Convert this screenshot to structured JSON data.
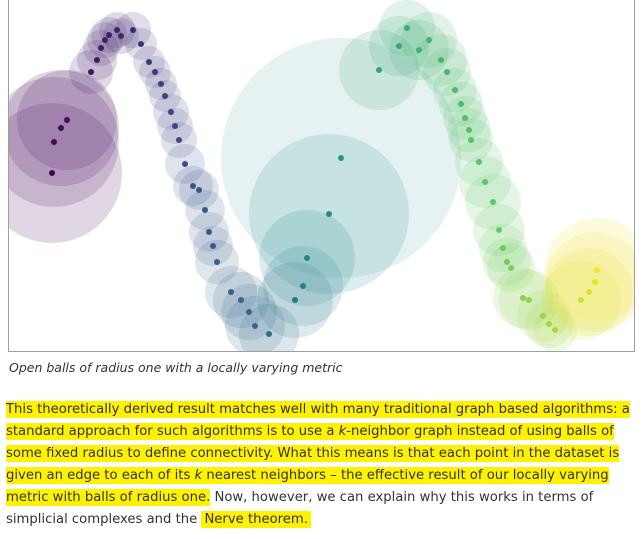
{
  "figure": {
    "caption": "Open balls of radius one with a locally varying metric",
    "colors": {
      "purple": "#440154",
      "indigo": "#3b528b",
      "teal": "#21918c",
      "green": "#5ec962",
      "yellow": "#fde725"
    }
  },
  "paragraph": {
    "seg1": "This theoretically derived result matches well with many traditional graph based algorithms: a standard approach for such algorithms is to use a ",
    "seg2_italic": "k",
    "seg3": "-neighbor graph instead of using balls of some fixed radius to define connectivity. What this means is that each point in the dataset is given an edge to each of its ",
    "seg4_italic": "k",
    "seg5": " nearest neighbors – the effective result of our locally varying metric with balls of radius one.",
    "seg6": " Now, however, we can explain why this works in terms of simplicial complexes and the ",
    "seg7": "Nerve theorem.",
    "highlight_color": "#fff200"
  }
}
